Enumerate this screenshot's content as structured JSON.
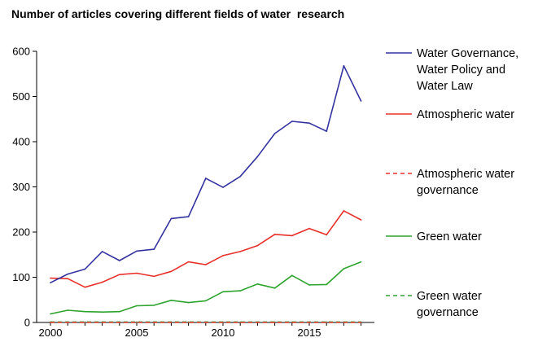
{
  "chart_data": {
    "type": "line",
    "title": "Number of articles covering different fields of water  research",
    "xlabel": "",
    "ylabel": "",
    "xlim": [
      2000,
      2019
    ],
    "ylim": [
      0,
      600
    ],
    "x_ticks": [
      2000,
      2005,
      2010,
      2015
    ],
    "y_ticks": [
      0,
      100,
      200,
      300,
      400,
      500,
      600
    ],
    "grid": false,
    "legend_position": "right",
    "x": [
      2000,
      2001,
      2002,
      2003,
      2004,
      2005,
      2006,
      2007,
      2008,
      2009,
      2010,
      2011,
      2012,
      2013,
      2014,
      2015,
      2016,
      2017,
      2018
    ],
    "series": [
      {
        "name": "Water Governance, Water Policy and Water Law",
        "legend_lines": [
          "Water Governance,",
          "Water Policy and",
          "Water Law"
        ],
        "color": "#3333a0",
        "dash": "solid",
        "values": [
          88,
          107,
          118,
          157,
          137,
          158,
          162,
          230,
          234,
          319,
          299,
          323,
          367,
          418,
          445,
          441,
          423,
          568,
          490
        ]
      },
      {
        "name": "Atmospheric water",
        "legend_lines": [
          "Atmospheric water"
        ],
        "color": "#e8302a",
        "dash": "solid",
        "values": [
          98,
          97,
          78,
          89,
          106,
          109,
          102,
          113,
          134,
          128,
          148,
          157,
          170,
          195,
          192,
          208,
          194,
          247,
          227
        ]
      },
      {
        "name": "Atmospheric water governance",
        "legend_lines": [
          "Atmospheric water",
          "governance"
        ],
        "color": "#e8302a",
        "dash": "dashed",
        "values": [
          0,
          0,
          0,
          0,
          0,
          0,
          0,
          0,
          0,
          0,
          0,
          0,
          0,
          0,
          0,
          0,
          0,
          0,
          0
        ]
      },
      {
        "name": "Green water",
        "legend_lines": [
          "Green water"
        ],
        "color": "#2ea32e",
        "dash": "solid",
        "values": [
          19,
          27,
          24,
          23,
          24,
          37,
          38,
          49,
          44,
          48,
          68,
          70,
          85,
          76,
          104,
          83,
          84,
          119,
          134
        ]
      },
      {
        "name": "Green water governance",
        "legend_lines": [
          "Green water",
          "governance"
        ],
        "color": "#2ea32e",
        "dash": "dashed",
        "values": [
          1,
          1,
          1,
          1,
          1,
          1,
          1,
          1,
          1,
          1,
          1,
          1,
          1,
          1,
          1,
          1,
          1,
          1,
          1
        ]
      }
    ]
  }
}
